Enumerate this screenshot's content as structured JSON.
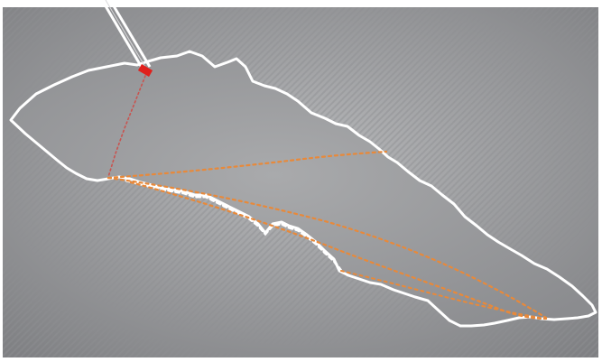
{
  "diagram": {
    "elements": [
      "background",
      "region-outline",
      "dashed-white-edge",
      "probe-needle",
      "probe-tip",
      "red-dotted-path",
      "orange-dotted-paths"
    ]
  },
  "colors": {
    "page": "#ffffff",
    "background_light": "#b8b9bb",
    "background_dark": "#7d7e81",
    "stripe": "#8e8f92",
    "region_fill": "#8b8c8f",
    "region_highlight": "#a9aaac",
    "outline": "#ffffff",
    "probe": "#ffffff",
    "probe_tip": "#e0201c",
    "red_path": "#c9534f",
    "orange_path": "#e8893a"
  }
}
